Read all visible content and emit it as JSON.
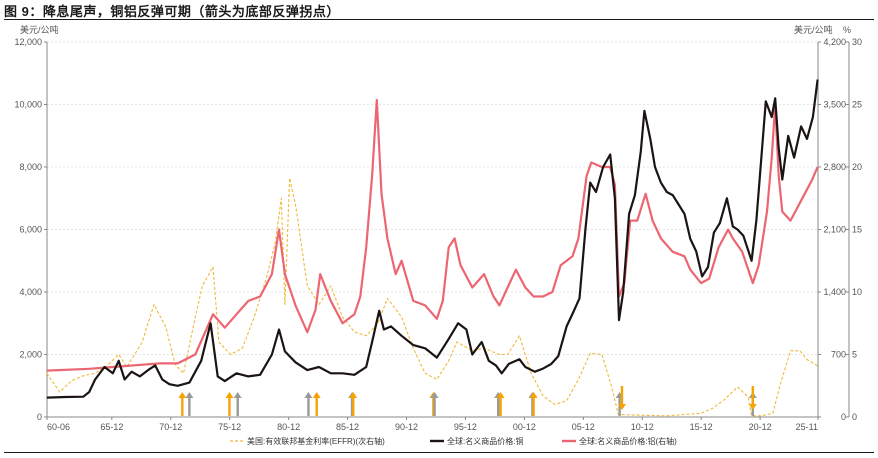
{
  "figure_title": "图 9：降息尾声，铜铝反弹可期（箭头为底部反弹拐点）",
  "chart_data": {
    "type": "line",
    "left_axis_unit": "美元/公吨",
    "right_axis_unit_1": "美元/公吨",
    "right_axis_unit_2": "%",
    "left_ticks": [
      "0",
      "2,000",
      "4,000",
      "6,000",
      "8,000",
      "10,000",
      "12,000"
    ],
    "right1_ticks": [
      "0",
      "700",
      "1,400",
      "2,100",
      "2,800",
      "3,500",
      "4,200"
    ],
    "right2_ticks": [
      "0",
      "5",
      "10",
      "15",
      "20",
      "25",
      "30"
    ],
    "ylim_left": [
      0,
      12000
    ],
    "ylim_right1": [
      0,
      4200
    ],
    "ylim_right2": [
      0,
      30
    ],
    "xlim": [
      1960.42,
      2025.83
    ],
    "x_tick_labels": [
      "60-06",
      "65-12",
      "70-12",
      "75-12",
      "80-12",
      "85-12",
      "90-12",
      "95-12",
      "00-12",
      "05-12",
      "10-12",
      "15-12",
      "20-12",
      "25-11"
    ],
    "x_tick_years": [
      1960.42,
      1965.92,
      1970.92,
      1975.92,
      1980.92,
      1985.92,
      1990.92,
      1995.92,
      2000.92,
      2005.92,
      2010.92,
      2015.92,
      2020.92,
      2025.83
    ],
    "series": [
      {
        "name": "美国:有效联邦基金利率(EFFR)(次右轴)",
        "axis": "right2",
        "color": "#f0b93a",
        "style": "dashed",
        "x": [
          1960.4,
          1961.5,
          1962.5,
          1963.5,
          1964.5,
          1965.5,
          1966.5,
          1967.2,
          1968.5,
          1969.5,
          1970.5,
          1971.3,
          1972.0,
          1973.0,
          1973.6,
          1974.5,
          1975.0,
          1976.0,
          1977.0,
          1978.0,
          1979.0,
          1979.8,
          1980.3,
          1980.6,
          1981.0,
          1981.5,
          1982.5,
          1983.5,
          1984.5,
          1985.5,
          1986.5,
          1987.5,
          1988.5,
          1989.3,
          1990.5,
          1991.5,
          1992.5,
          1993.5,
          1994.5,
          1995.2,
          1996.5,
          1997.5,
          1998.8,
          1999.5,
          2000.5,
          2001.5,
          2002.5,
          2003.5,
          2004.5,
          2005.5,
          2006.5,
          2007.5,
          2008.3,
          2008.9,
          2010.5,
          2013.0,
          2015.9,
          2016.9,
          2017.9,
          2019.0,
          2019.9,
          2020.2,
          2021.0,
          2022.0,
          2022.6,
          2023.5,
          2024.3,
          2024.9,
          2025.8
        ],
        "values": [
          3.5,
          2.0,
          2.9,
          3.3,
          3.5,
          4.1,
          5.0,
          4.0,
          6.0,
          9.0,
          7.2,
          4.2,
          3.5,
          8.0,
          10.5,
          12.0,
          6.0,
          5.0,
          5.5,
          8.0,
          11.0,
          14.0,
          17.5,
          9.0,
          19.1,
          17.0,
          10.5,
          9.0,
          10.5,
          8.0,
          6.8,
          6.5,
          7.5,
          9.5,
          8.0,
          5.5,
          3.5,
          3.0,
          4.5,
          6.0,
          5.3,
          5.5,
          5.0,
          5.0,
          6.5,
          3.5,
          1.7,
          1.0,
          1.3,
          3.0,
          5.1,
          5.0,
          2.5,
          0.2,
          0.15,
          0.1,
          0.3,
          0.7,
          1.4,
          2.4,
          1.6,
          0.1,
          0.1,
          0.3,
          2.5,
          5.3,
          5.3,
          4.6,
          4.1
        ]
      },
      {
        "name": "全球:名义商品价格:铜",
        "axis": "left",
        "color": "#1c1412",
        "style": "solid",
        "x": [
          1960.4,
          1962.0,
          1963.5,
          1964.0,
          1964.5,
          1965.3,
          1966.0,
          1966.5,
          1967.0,
          1967.6,
          1968.3,
          1969.0,
          1969.6,
          1970.2,
          1970.8,
          1971.5,
          1972.5,
          1973.5,
          1974.3,
          1974.9,
          1975.5,
          1976.5,
          1977.5,
          1978.5,
          1979.5,
          1980.1,
          1980.6,
          1981.5,
          1982.5,
          1983.5,
          1984.5,
          1985.5,
          1986.5,
          1987.5,
          1988.0,
          1988.6,
          1989.0,
          1989.6,
          1990.5,
          1991.5,
          1992.5,
          1993.5,
          1994.5,
          1995.3,
          1996.0,
          1996.5,
          1997.3,
          1997.9,
          1998.5,
          1999.0,
          1999.6,
          2000.5,
          2001.0,
          2001.8,
          2002.5,
          2003.2,
          2003.8,
          2004.5,
          2005.0,
          2005.6,
          2006.1,
          2006.5,
          2007.0,
          2007.6,
          2008.2,
          2008.6,
          2008.95,
          2009.3,
          2009.8,
          2010.3,
          2010.8,
          2011.1,
          2011.6,
          2012.0,
          2012.5,
          2013.0,
          2013.5,
          2014.0,
          2014.5,
          2015.0,
          2015.5,
          2016.0,
          2016.5,
          2017.0,
          2017.5,
          2018.1,
          2018.6,
          2019.0,
          2019.5,
          2020.2,
          2020.6,
          2021.0,
          2021.4,
          2021.9,
          2022.2,
          2022.5,
          2022.8,
          2023.3,
          2023.8,
          2024.4,
          2024.9,
          2025.4,
          2025.8
        ],
        "values": [
          620,
          640,
          650,
          800,
          1200,
          1600,
          1400,
          1800,
          1200,
          1450,
          1300,
          1500,
          1650,
          1200,
          1050,
          1000,
          1100,
          1800,
          3000,
          1300,
          1150,
          1400,
          1300,
          1350,
          2000,
          2800,
          2100,
          1750,
          1500,
          1600,
          1400,
          1400,
          1350,
          1600,
          2400,
          3400,
          2800,
          2900,
          2600,
          2300,
          2200,
          1900,
          2500,
          3000,
          2800,
          2000,
          2400,
          1800,
          1650,
          1400,
          1700,
          1850,
          1600,
          1450,
          1550,
          1700,
          1950,
          2900,
          3300,
          3800,
          6000,
          7500,
          7200,
          8000,
          8400,
          7000,
          3100,
          4000,
          6500,
          7100,
          8500,
          9800,
          8900,
          8000,
          7500,
          7200,
          7100,
          6800,
          6500,
          5700,
          5300,
          4500,
          4800,
          5900,
          6200,
          7000,
          6100,
          6000,
          5800,
          5000,
          6300,
          8200,
          10100,
          9600,
          10200,
          8600,
          7600,
          9000,
          8300,
          9300,
          8900,
          9600,
          10800
        ]
      },
      {
        "name": "全球:名义商品价格:铝(右轴)",
        "axis": "right1",
        "color": "#ec6672",
        "style": "solid",
        "x": [
          1960.4,
          1964.0,
          1966.0,
          1968.0,
          1970.0,
          1971.5,
          1973.0,
          1974.5,
          1975.5,
          1976.5,
          1977.5,
          1978.5,
          1979.5,
          1980.1,
          1980.6,
          1981.5,
          1982.5,
          1983.2,
          1983.6,
          1984.5,
          1985.5,
          1986.0,
          1986.5,
          1987.0,
          1987.5,
          1988.0,
          1988.4,
          1988.8,
          1989.3,
          1990.0,
          1990.5,
          1991.5,
          1992.5,
          1993.5,
          1994.0,
          1994.5,
          1995.0,
          1995.5,
          1996.5,
          1997.5,
          1998.3,
          1998.8,
          1999.5,
          2000.2,
          2001.0,
          2001.7,
          2002.5,
          2003.3,
          2004.0,
          2005.0,
          2005.5,
          2006.2,
          2006.6,
          2007.5,
          2008.2,
          2008.6,
          2008.95,
          2009.4,
          2009.9,
          2010.5,
          2011.2,
          2011.8,
          2012.5,
          2013.5,
          2014.5,
          2015.0,
          2015.9,
          2016.6,
          2017.4,
          2018.2,
          2018.6,
          2019.4,
          2020.3,
          2020.8,
          2021.5,
          2021.9,
          2022.2,
          2022.5,
          2022.8,
          2023.5,
          2024.3,
          2024.7,
          2025.3,
          2025.8
        ],
        "values": [
          520,
          540,
          560,
          580,
          600,
          600,
          700,
          1150,
          1000,
          1150,
          1300,
          1350,
          1600,
          2100,
          1600,
          1250,
          950,
          1200,
          1600,
          1300,
          1050,
          1100,
          1150,
          1350,
          1900,
          2700,
          3550,
          2500,
          2000,
          1600,
          1750,
          1300,
          1250,
          1100,
          1300,
          1900,
          2000,
          1700,
          1450,
          1600,
          1350,
          1250,
          1450,
          1650,
          1450,
          1350,
          1350,
          1400,
          1700,
          1800,
          2000,
          2700,
          2850,
          2800,
          2800,
          2600,
          1350,
          1500,
          2200,
          2200,
          2500,
          2200,
          2000,
          1850,
          1800,
          1650,
          1500,
          1550,
          1900,
          2100,
          2000,
          1850,
          1500,
          1700,
          2300,
          2900,
          3500,
          2700,
          2300,
          2200,
          2400,
          2500,
          2650,
          2800
        ]
      }
    ],
    "arrow_markers": [
      {
        "color": "#f5a300",
        "x": 1971.9,
        "direction": "up"
      },
      {
        "color": "#9a9a9a",
        "x": 1972.5,
        "direction": "up"
      },
      {
        "color": "#f5a300",
        "x": 1975.9,
        "direction": "up"
      },
      {
        "color": "#9a9a9a",
        "x": 1976.6,
        "direction": "up"
      },
      {
        "color": "#9a9a9a",
        "x": 1982.6,
        "direction": "up"
      },
      {
        "color": "#f5a300",
        "x": 1983.3,
        "direction": "up"
      },
      {
        "color": "#9a9a9a",
        "x": 1986.3,
        "direction": "up"
      },
      {
        "color": "#f5a300",
        "x": 1986.4,
        "direction": "up"
      },
      {
        "color": "#f5a300",
        "x": 1993.2,
        "direction": "up"
      },
      {
        "color": "#9a9a9a",
        "x": 1993.3,
        "direction": "up"
      },
      {
        "color": "#9a9a9a",
        "x": 1998.7,
        "direction": "up"
      },
      {
        "color": "#f5a300",
        "x": 1998.9,
        "direction": "up"
      },
      {
        "color": "#9a9a9a",
        "x": 2001.6,
        "direction": "up"
      },
      {
        "color": "#f5a300",
        "x": 2001.7,
        "direction": "up"
      },
      {
        "color": "#9a9a9a",
        "x": 2009.0,
        "direction": "up"
      },
      {
        "color": "#f5a300",
        "x": 2009.2,
        "direction": "down"
      },
      {
        "color": "#9a9a9a",
        "x": 2020.3,
        "direction": "up"
      },
      {
        "color": "#f5a300",
        "x": 2020.3,
        "direction": "down"
      }
    ]
  }
}
